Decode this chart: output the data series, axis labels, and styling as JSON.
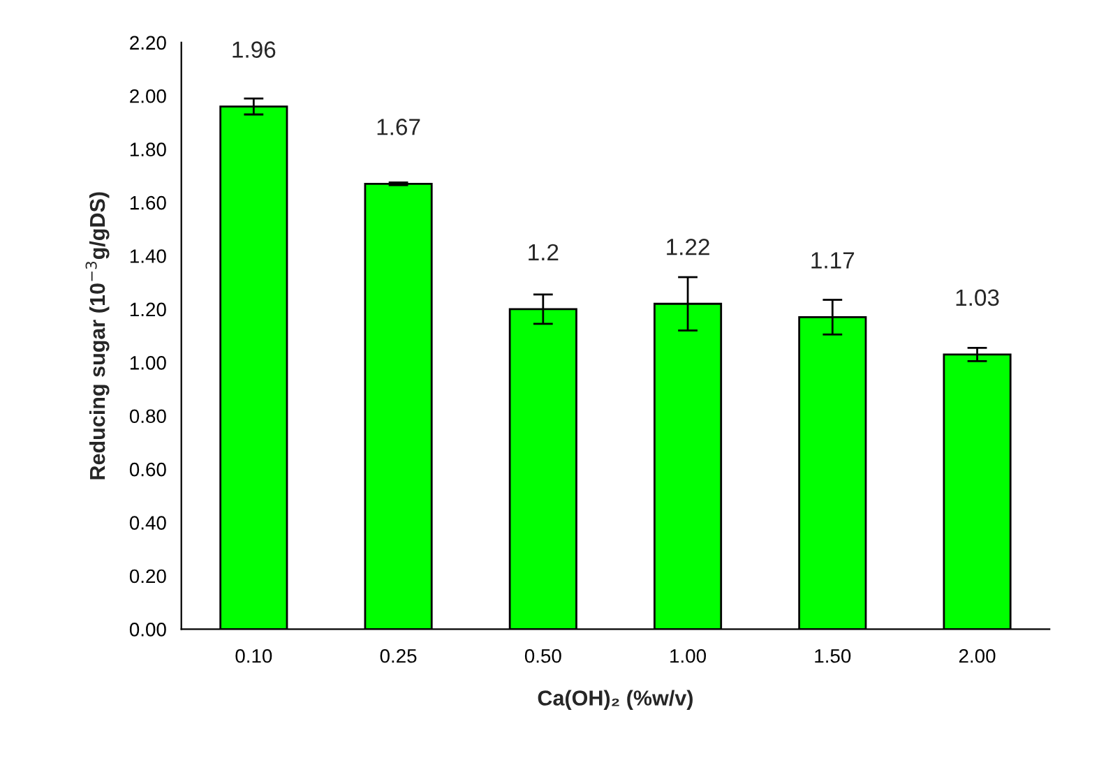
{
  "chart_data": {
    "type": "bar",
    "xlabel": "Ca(OH)₂ (%w/v)",
    "ylabel": "Reducing sugar (10$^{−3}$g/gDS)",
    "categories": [
      "0.10",
      "0.25",
      "0.50",
      "1.00",
      "1.50",
      "2.00"
    ],
    "values": [
      1.96,
      1.67,
      1.2,
      1.22,
      1.17,
      1.03
    ],
    "errors": [
      0.03,
      0.005,
      0.055,
      0.1,
      0.065,
      0.025
    ],
    "color": "#00ff00",
    "data_labels": true,
    "ylim": [
      0,
      2.2
    ],
    "yticks": [
      {
        "value": 0,
        "label": "0.00"
      },
      {
        "value": 0.2,
        "label": "0.20"
      },
      {
        "value": 0.4,
        "label": "0.40"
      },
      {
        "value": 0.6,
        "label": "0.60"
      },
      {
        "value": 0.8,
        "label": "0.80"
      },
      {
        "value": 1.0,
        "label": "1.00"
      },
      {
        "value": 1.2,
        "label": "1.20"
      },
      {
        "value": 1.4,
        "label": "1.40"
      },
      {
        "value": 1.6,
        "label": "1.60"
      },
      {
        "value": 1.8,
        "label": "1.80"
      },
      {
        "value": 2.0,
        "label": "2.00"
      },
      {
        "value": 2.2,
        "label": "2.20"
      }
    ],
    "grid": false
  }
}
